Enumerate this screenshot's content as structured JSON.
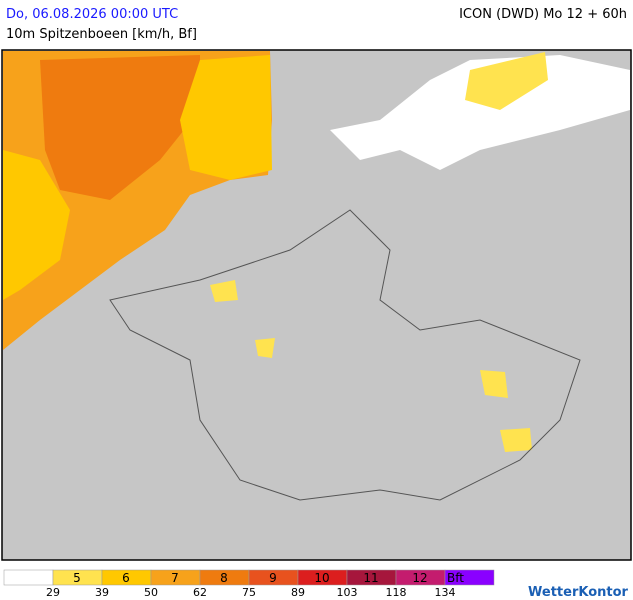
{
  "header": {
    "title": "Do, 06.08.2026 00:00 UTC",
    "model": "ICON (DWD) Mo 12 + 60h",
    "subtitle": "10m Spitzenboeen [km/h, Bf]"
  },
  "legend": {
    "colors": [
      "#ffffff",
      "#ffe34f",
      "#ffc800",
      "#f7a21b",
      "#ef7b0f",
      "#e8521e",
      "#dc1e1e",
      "#a6163c",
      "#c41c6e",
      "#8a00ff"
    ],
    "labels": [
      "5",
      "6",
      "7",
      "8",
      "9",
      "10",
      "11",
      "12",
      "Bft"
    ],
    "thresholds": [
      "29",
      "39",
      "50",
      "62",
      "75",
      "89",
      "103",
      "118",
      "134"
    ]
  },
  "brand": "WetterKontor"
}
